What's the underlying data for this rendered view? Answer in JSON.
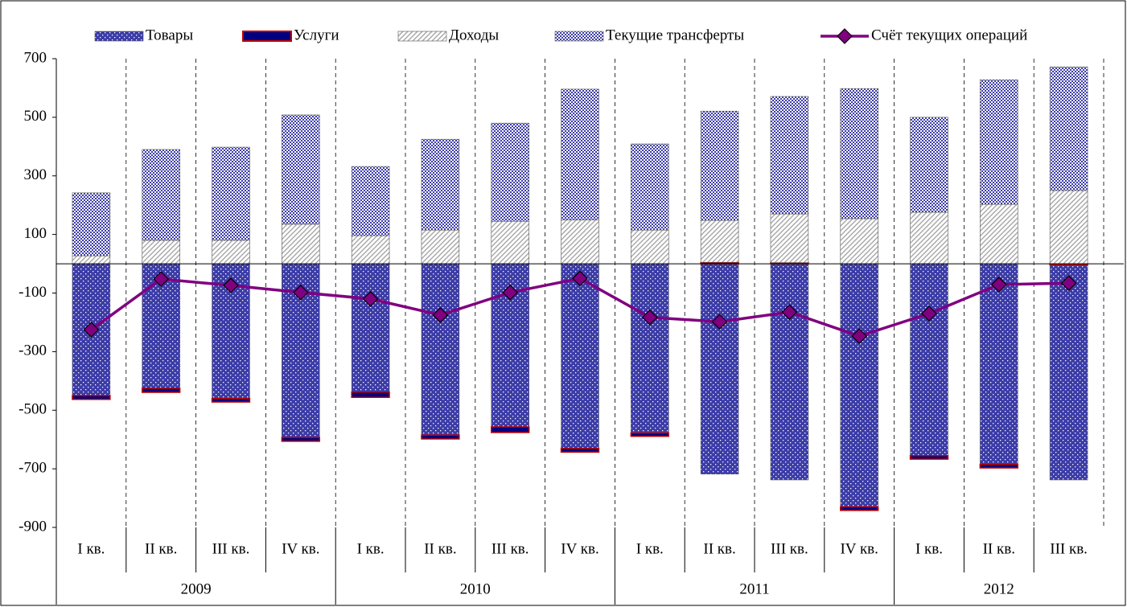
{
  "chart_data": {
    "type": "stacked-bar-line",
    "groups": [
      {
        "label": "2009",
        "categories": [
          "I кв.",
          "II кв.",
          "III кв.",
          "IV кв."
        ]
      },
      {
        "label": "2010",
        "categories": [
          "I кв.",
          "II кв.",
          "III кв.",
          "IV кв."
        ]
      },
      {
        "label": "2011",
        "categories": [
          "I кв.",
          "II кв.",
          "III кв.",
          "IV кв."
        ]
      },
      {
        "label": "2012",
        "categories": [
          "I кв.",
          "II кв.",
          "III кв."
        ]
      }
    ],
    "series": [
      {
        "name": "Товары",
        "type": "bar",
        "color": "#3c3ca8",
        "pattern": "dots",
        "values": [
          -450,
          -425,
          -460,
          -593,
          -438,
          -585,
          -557,
          -630,
          -578,
          -718,
          -738,
          -830,
          -655,
          -685,
          -738
        ]
      },
      {
        "name": "Услуги",
        "type": "bar",
        "color": "#000080",
        "pattern": "solid",
        "values": [
          -13,
          -14,
          -12,
          -13,
          -18,
          -13,
          -19,
          -13,
          -11,
          5,
          4,
          -12,
          -12,
          -12,
          0
        ]
      },
      {
        "name": "Доходы",
        "type": "bar",
        "color": "#a6a6a6",
        "pattern": "hatch",
        "values": [
          27,
          80,
          80,
          135,
          96,
          115,
          145,
          150,
          115,
          143,
          166,
          154,
          176,
          203,
          250
        ]
      },
      {
        "name": "Текущие трансферты",
        "type": "bar",
        "color": "#3c3ca8",
        "pattern": "check",
        "values": [
          215,
          310,
          318,
          373,
          236,
          310,
          335,
          446,
          294,
          373,
          401,
          444,
          324,
          425,
          422
        ]
      },
      {
        "name": "Счёт текущих операций",
        "type": "line",
        "color": "#800080",
        "values": [
          -225,
          -52,
          -74,
          -98,
          -120,
          -175,
          -98,
          -50,
          -183,
          -198,
          -165,
          -247,
          -170,
          -71,
          -66
        ]
      }
    ],
    "ylim": [
      -900,
      700
    ],
    "yticks": [
      700,
      500,
      300,
      100,
      -100,
      -300,
      -500,
      -700,
      -900
    ],
    "legend": "top"
  }
}
